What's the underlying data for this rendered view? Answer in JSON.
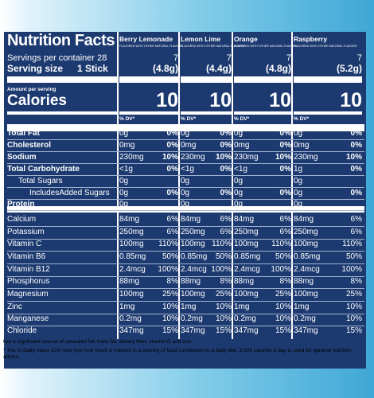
{
  "title": "Nutrition Facts",
  "servings_text": "Servings per container 28",
  "serving_size_label": "Serving size",
  "serving_size_value": "1 Stick",
  "amount_per_serving": "Amount per serving",
  "calories_label": "Calories",
  "dv_header": "% DV*",
  "columns": [
    {
      "name": "Berry Lemonade",
      "sub": "FLAVORED WITH OTHER NATURAL FLAVORS",
      "count": "7",
      "weight": "(4.8g)",
      "calories": "10",
      "total_fat": "0g",
      "total_fat_dv": "0%",
      "cholesterol": "0mg",
      "cholesterol_dv": "0%",
      "sodium": "230mg",
      "sodium_dv": "10%",
      "carb": "<1g",
      "carb_dv": "0%",
      "sugars": "0g",
      "added": "0g",
      "added_dv": "0%",
      "protein": "0g",
      "minerals": [
        [
          "84mg",
          "6%"
        ],
        [
          "250mg",
          "6%"
        ],
        [
          "100mg",
          "110%"
        ],
        [
          "0.85mg",
          "50%"
        ],
        [
          "2.4mcg",
          "100%"
        ],
        [
          "88mg",
          "8%"
        ],
        [
          "100mg",
          "25%"
        ],
        [
          "1mg",
          "10%"
        ],
        [
          "0.2mg",
          "10%"
        ],
        [
          "347mg",
          "15%"
        ]
      ]
    },
    {
      "name": "Lemon Lime",
      "sub": "FLAVORED WITH OTHER NATURAL FLAVORS",
      "count": "7",
      "weight": "(4.4g)",
      "calories": "10",
      "total_fat": "0g",
      "total_fat_dv": "0%",
      "cholesterol": "0mg",
      "cholesterol_dv": "0%",
      "sodium": "230mg",
      "sodium_dv": "10%",
      "carb": "<1g",
      "carb_dv": "0%",
      "sugars": "0g",
      "added": "0g",
      "added_dv": "0%",
      "protein": "0g",
      "minerals": [
        [
          "84mg",
          "6%"
        ],
        [
          "250mg",
          "6%"
        ],
        [
          "100mg",
          "110%"
        ],
        [
          "0.85mg",
          "50%"
        ],
        [
          "2.4mcg",
          "100%"
        ],
        [
          "88mg",
          "8%"
        ],
        [
          "100mg",
          "25%"
        ],
        [
          "1mg",
          "10%"
        ],
        [
          "0.2mg",
          "10%"
        ],
        [
          "347mg",
          "15%"
        ]
      ]
    },
    {
      "name": "Orange",
      "sub": "FLAVORED WITH OTHER NATURAL FLAVORS",
      "count": "7",
      "weight": "(4.8g)",
      "calories": "10",
      "total_fat": "0g",
      "total_fat_dv": "0%",
      "cholesterol": "0mg",
      "cholesterol_dv": "0%",
      "sodium": "230mg",
      "sodium_dv": "10%",
      "carb": "<1g",
      "carb_dv": "0%",
      "sugars": "0g",
      "added": "0g",
      "added_dv": "0%",
      "protein": "0g",
      "minerals": [
        [
          "84mg",
          "6%"
        ],
        [
          "250mg",
          "6%"
        ],
        [
          "100mg",
          "110%"
        ],
        [
          "0.85mg",
          "50%"
        ],
        [
          "2.4mcg",
          "100%"
        ],
        [
          "88mg",
          "8%"
        ],
        [
          "100mg",
          "25%"
        ],
        [
          "1mg",
          "10%"
        ],
        [
          "0.2mg",
          "10%"
        ],
        [
          "347mg",
          "15%"
        ]
      ]
    },
    {
      "name": "Raspberry",
      "sub": "FLAVORED WITH OTHER NATURAL FLAVORS",
      "count": "7",
      "weight": "(5.2g)",
      "calories": "10",
      "total_fat": "0g",
      "total_fat_dv": "0%",
      "cholesterol": "0mg",
      "cholesterol_dv": "0%",
      "sodium": "230mg",
      "sodium_dv": "10%",
      "carb": "1g",
      "carb_dv": "0%",
      "sugars": "0g",
      "added": "0g",
      "added_dv": "0%",
      "protein": "0g",
      "minerals": [
        [
          "84mg",
          "6%"
        ],
        [
          "250mg",
          "6%"
        ],
        [
          "100mg",
          "110%"
        ],
        [
          "0.85mg",
          "50%"
        ],
        [
          "2.4mcg",
          "100%"
        ],
        [
          "88mg",
          "8%"
        ],
        [
          "100mg",
          "25%"
        ],
        [
          "1mg",
          "10%"
        ],
        [
          "0.2mg",
          "10%"
        ],
        [
          "347mg",
          "15%"
        ]
      ]
    }
  ],
  "nutrient_labels": {
    "total_fat": "Total Fat",
    "cholesterol": "Cholesterol",
    "sodium": "Sodium",
    "carb": "Total Carbohydrate",
    "sugars": "Total Sugars",
    "added": "IncludesAdded Sugars",
    "protein": "Protein"
  },
  "mineral_labels": [
    "Calcium",
    "Potassium",
    "Vitamin C",
    "Vitamin B6",
    "Vitamin B12",
    "Phosphorus",
    "Magnesium",
    "Zinc",
    "Manganese",
    "Chloride"
  ],
  "footnote_1": "Not a significant source of saturated fat, trans fat, dietary fiber, vitamin D and iron.",
  "footnote_2": "* The % Daily Value (DV) tells you how much a nutrient in a serving of food contributes to a daily diet. 2,000 calories a day is used for general nutrition advice."
}
